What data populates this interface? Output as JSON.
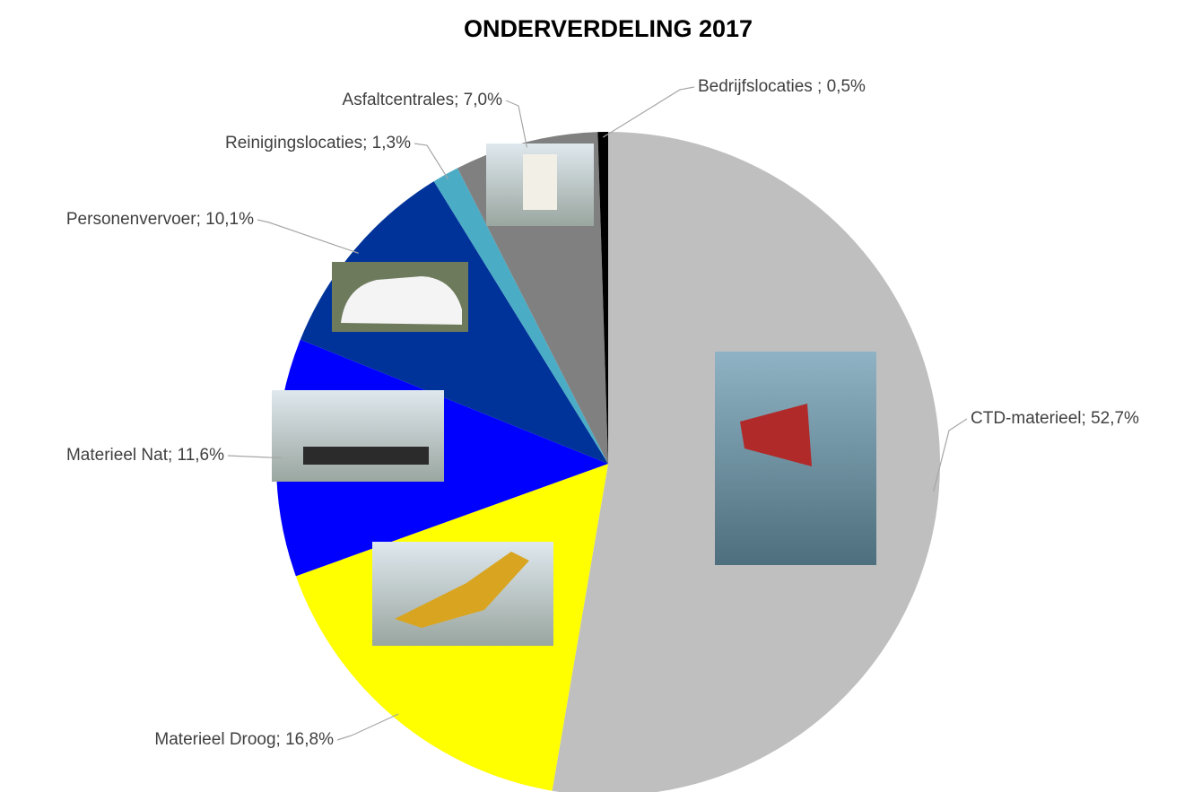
{
  "chart_data": {
    "type": "pie",
    "title": "ONDERVERDELING 2017",
    "values": [
      52.7,
      16.8,
      11.6,
      10.1,
      1.3,
      7.0,
      0.5
    ],
    "value_labels": [
      "CTD-materieel; 52,7%",
      "Materieel Droog; 16,8%",
      "Materieel Nat; 11,6%",
      "Personenvervoer; 10,1%",
      "Reinigingslocaties; 1,3%",
      "Asfaltcentrales; 7,0%",
      "Bedrijfslocaties ; 0,5%"
    ],
    "colors": [
      "#bfbfbf",
      "#ffff00",
      "#0000ff",
      "#003399",
      "#4bacc6",
      "#808080",
      "#000000"
    ]
  }
}
